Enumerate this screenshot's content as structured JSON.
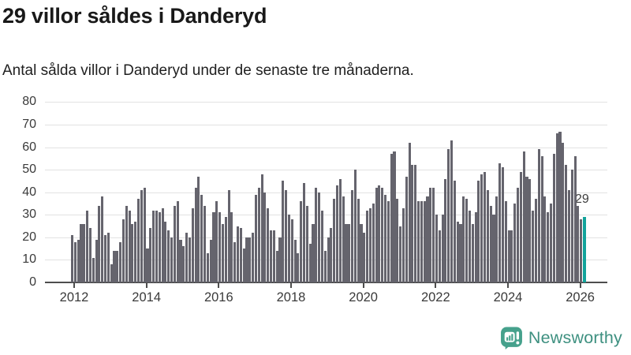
{
  "title": "29 villor såldes i Danderyd",
  "subtitle": "Antal sålda villor i Danderyd under de senaste tre månaderna.",
  "annotation": {
    "label": "29"
  },
  "logo": {
    "text": "Newsworthy",
    "badge_color": "#46a18c",
    "text_color": "#3e9080",
    "icon": "bar-chart-speech-bubble-icon"
  },
  "chart_data": {
    "type": "bar",
    "title": "29 villor såldes i Danderyd",
    "subtitle": "Antal sålda villor i Danderyd under de senaste tre månaderna.",
    "x_start": "2012-01",
    "x_interval": "monthly",
    "values": [
      21,
      18,
      19,
      26,
      26,
      32,
      24,
      11,
      19,
      34,
      38,
      21,
      22,
      8,
      14,
      14,
      18,
      28,
      34,
      32,
      26,
      27,
      37,
      41,
      42,
      15,
      24,
      32,
      32,
      31,
      33,
      27,
      23,
      20,
      34,
      36,
      19,
      16,
      22,
      20,
      33,
      42,
      47,
      39,
      34,
      13,
      19,
      31,
      36,
      31,
      26,
      29,
      41,
      31,
      18,
      25,
      24,
      15,
      20,
      20,
      22,
      39,
      42,
      48,
      40,
      33,
      23,
      23,
      14,
      20,
      45,
      41,
      30,
      28,
      19,
      13,
      36,
      44,
      34,
      17,
      26,
      42,
      40,
      32,
      14,
      20,
      24,
      37,
      43,
      46,
      38,
      26,
      26,
      41,
      50,
      37,
      26,
      22,
      32,
      33,
      35,
      42,
      43,
      42,
      39,
      36,
      57,
      58,
      37,
      25,
      33,
      47,
      62,
      52,
      52,
      36,
      36,
      36,
      38,
      42,
      42,
      30,
      23,
      30,
      46,
      59,
      63,
      45,
      27,
      26,
      38,
      37,
      32,
      26,
      31,
      45,
      48,
      49,
      41,
      34,
      30,
      38,
      53,
      51,
      36,
      23,
      23,
      35,
      42,
      49,
      58,
      47,
      46,
      32,
      37,
      59,
      56,
      38,
      31,
      35,
      57,
      66,
      67,
      62,
      52,
      41,
      50,
      56,
      34,
      28,
      29
    ],
    "highlight": {
      "index": 170,
      "value": 29,
      "color": "#12a39b",
      "label": "29"
    },
    "bar_color": "#65646d",
    "x_tick_labels": [
      "2012",
      "2014",
      "2016",
      "2018",
      "2020",
      "2022",
      "2024",
      "2026"
    ],
    "y_ticks": [
      0,
      10,
      20,
      30,
      40,
      50,
      60,
      70,
      80
    ],
    "ylim": [
      0,
      80
    ],
    "grid": true,
    "gridline_color": "#e2e2e2",
    "axis_color": "#4d4d4d",
    "legend": "none"
  }
}
